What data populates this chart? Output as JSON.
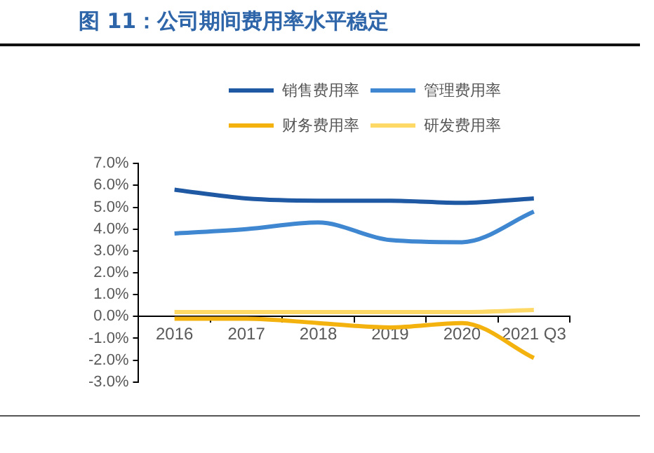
{
  "chart_data": {
    "type": "line",
    "title": "图 11：公司期间费用率水平稳定",
    "categories": [
      "2016",
      "2017",
      "2018",
      "2019",
      "2020",
      "2021 Q3"
    ],
    "series": [
      {
        "name": "销售费用率",
        "color": "#1f58a3",
        "values": [
          5.8,
          5.4,
          5.3,
          5.3,
          5.2,
          5.4
        ]
      },
      {
        "name": "管理费用率",
        "color": "#3f87d0",
        "values": [
          3.8,
          4.0,
          4.3,
          3.5,
          3.4,
          4.8
        ]
      },
      {
        "name": "财务费用率",
        "color": "#f4b20f",
        "values": [
          -0.1,
          -0.1,
          -0.3,
          -0.5,
          -0.3,
          -1.9
        ]
      },
      {
        "name": "研发费用率",
        "color": "#ffd966",
        "values": [
          0.2,
          0.2,
          0.2,
          0.2,
          0.2,
          0.3
        ]
      }
    ],
    "ylim": [
      -3,
      7
    ],
    "yticks": [
      {
        "value": -3,
        "label": "-3.0%"
      },
      {
        "value": -2,
        "label": "-2.0%"
      },
      {
        "value": -1,
        "label": "-1.0%"
      },
      {
        "value": 0,
        "label": "0.0%"
      },
      {
        "value": 1,
        "label": "1.0%"
      },
      {
        "value": 2,
        "label": "2.0%"
      },
      {
        "value": 3,
        "label": "3.0%"
      },
      {
        "value": 4,
        "label": "4.0%"
      },
      {
        "value": 5,
        "label": "5.0%"
      },
      {
        "value": 6,
        "label": "6.0%"
      },
      {
        "value": 7,
        "label": "7.0%"
      }
    ],
    "grid": false,
    "legend": "top",
    "marker": "none",
    "line_style": "solid"
  }
}
